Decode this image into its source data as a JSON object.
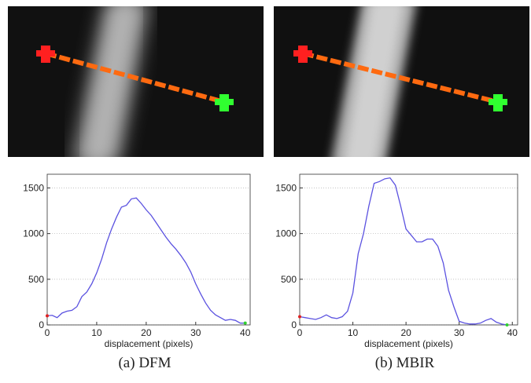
{
  "chart_data": [
    {
      "type": "line",
      "caption": "(a) DFM",
      "xlabel": "displacement (pixels)",
      "x": [
        0,
        1,
        2,
        3,
        4,
        5,
        6,
        7,
        8,
        9,
        10,
        11,
        12,
        13,
        14,
        15,
        16,
        17,
        18,
        19,
        20,
        21,
        22,
        23,
        24,
        25,
        26,
        27,
        28,
        29,
        30,
        31,
        32,
        33,
        34,
        35,
        36,
        37,
        38,
        39,
        40
      ],
      "series": [
        {
          "color": "#5b52e0",
          "values": [
            100,
            105,
            80,
            130,
            150,
            160,
            200,
            310,
            360,
            450,
            570,
            720,
            900,
            1050,
            1180,
            1290,
            1310,
            1380,
            1390,
            1330,
            1260,
            1200,
            1120,
            1040,
            960,
            890,
            830,
            760,
            680,
            580,
            450,
            340,
            240,
            160,
            110,
            80,
            50,
            60,
            50,
            20,
            20
          ]
        }
      ],
      "start_color": "#e02020",
      "end_color": "#30d030",
      "xlim": [
        0,
        41
      ],
      "ylim": [
        0,
        1650
      ],
      "xticks": [
        0,
        10,
        20,
        30,
        40
      ],
      "yticks": [
        0,
        500,
        1000,
        1500
      ],
      "grid": true
    },
    {
      "type": "line",
      "caption": "(b) MBIR",
      "xlabel": "displacement (pixels)",
      "x": [
        0,
        1,
        2,
        3,
        4,
        5,
        6,
        7,
        8,
        9,
        10,
        11,
        12,
        13,
        14,
        15,
        16,
        17,
        18,
        19,
        20,
        21,
        22,
        23,
        24,
        25,
        26,
        27,
        28,
        29,
        30,
        31,
        32,
        33,
        34,
        35,
        36,
        37,
        38,
        39
      ],
      "series": [
        {
          "color": "#5b52e0",
          "values": [
            90,
            80,
            70,
            60,
            80,
            110,
            80,
            70,
            90,
            150,
            350,
            780,
            1000,
            1300,
            1550,
            1570,
            1600,
            1610,
            1530,
            1300,
            1050,
            980,
            910,
            910,
            940,
            940,
            860,
            680,
            380,
            200,
            40,
            20,
            10,
            10,
            20,
            50,
            70,
            30,
            10,
            0
          ]
        }
      ],
      "start_color": "#e02020",
      "end_color": "#30d030",
      "xlim": [
        0,
        41
      ],
      "ylim": [
        0,
        1650
      ],
      "xticks": [
        0,
        10,
        20,
        30,
        40
      ],
      "yticks": [
        0,
        500,
        1000,
        1500
      ],
      "grid": true
    }
  ]
}
